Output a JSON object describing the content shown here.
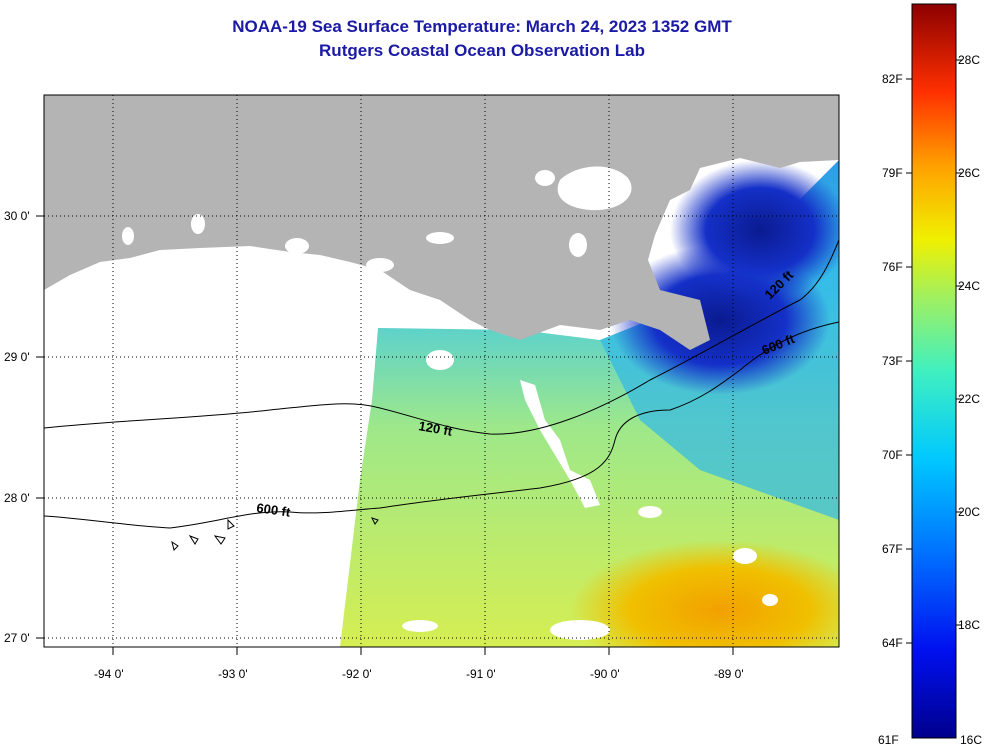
{
  "header": {
    "title": "NOAA-19 Sea Surface Temperature:  March 24, 2023 1352 GMT",
    "subtitle": "Rutgers Coastal Ocean Observation Lab"
  },
  "map": {
    "lat_labels": [
      "30 0'",
      "29 0'",
      "28 0'",
      "27 0'"
    ],
    "lon_labels": [
      "-94 0'",
      "-93 0'",
      "-92 0'",
      "-91 0'",
      "-90 0'",
      "-89 0'"
    ],
    "contour_labels": [
      "120 ft",
      "600 ft",
      "120 ft",
      "600 ft"
    ]
  },
  "colorbar": {
    "f_labels": [
      "82F",
      "79F",
      "76F",
      "73F",
      "70F",
      "67F",
      "64F",
      "61F"
    ],
    "c_labels": [
      "28C",
      "26C",
      "24C",
      "22C",
      "20C",
      "18C",
      "16C"
    ]
  },
  "colors": {
    "title": "#1a1aa6",
    "land": "#b4b4b4",
    "no_data": "#ffffff"
  }
}
